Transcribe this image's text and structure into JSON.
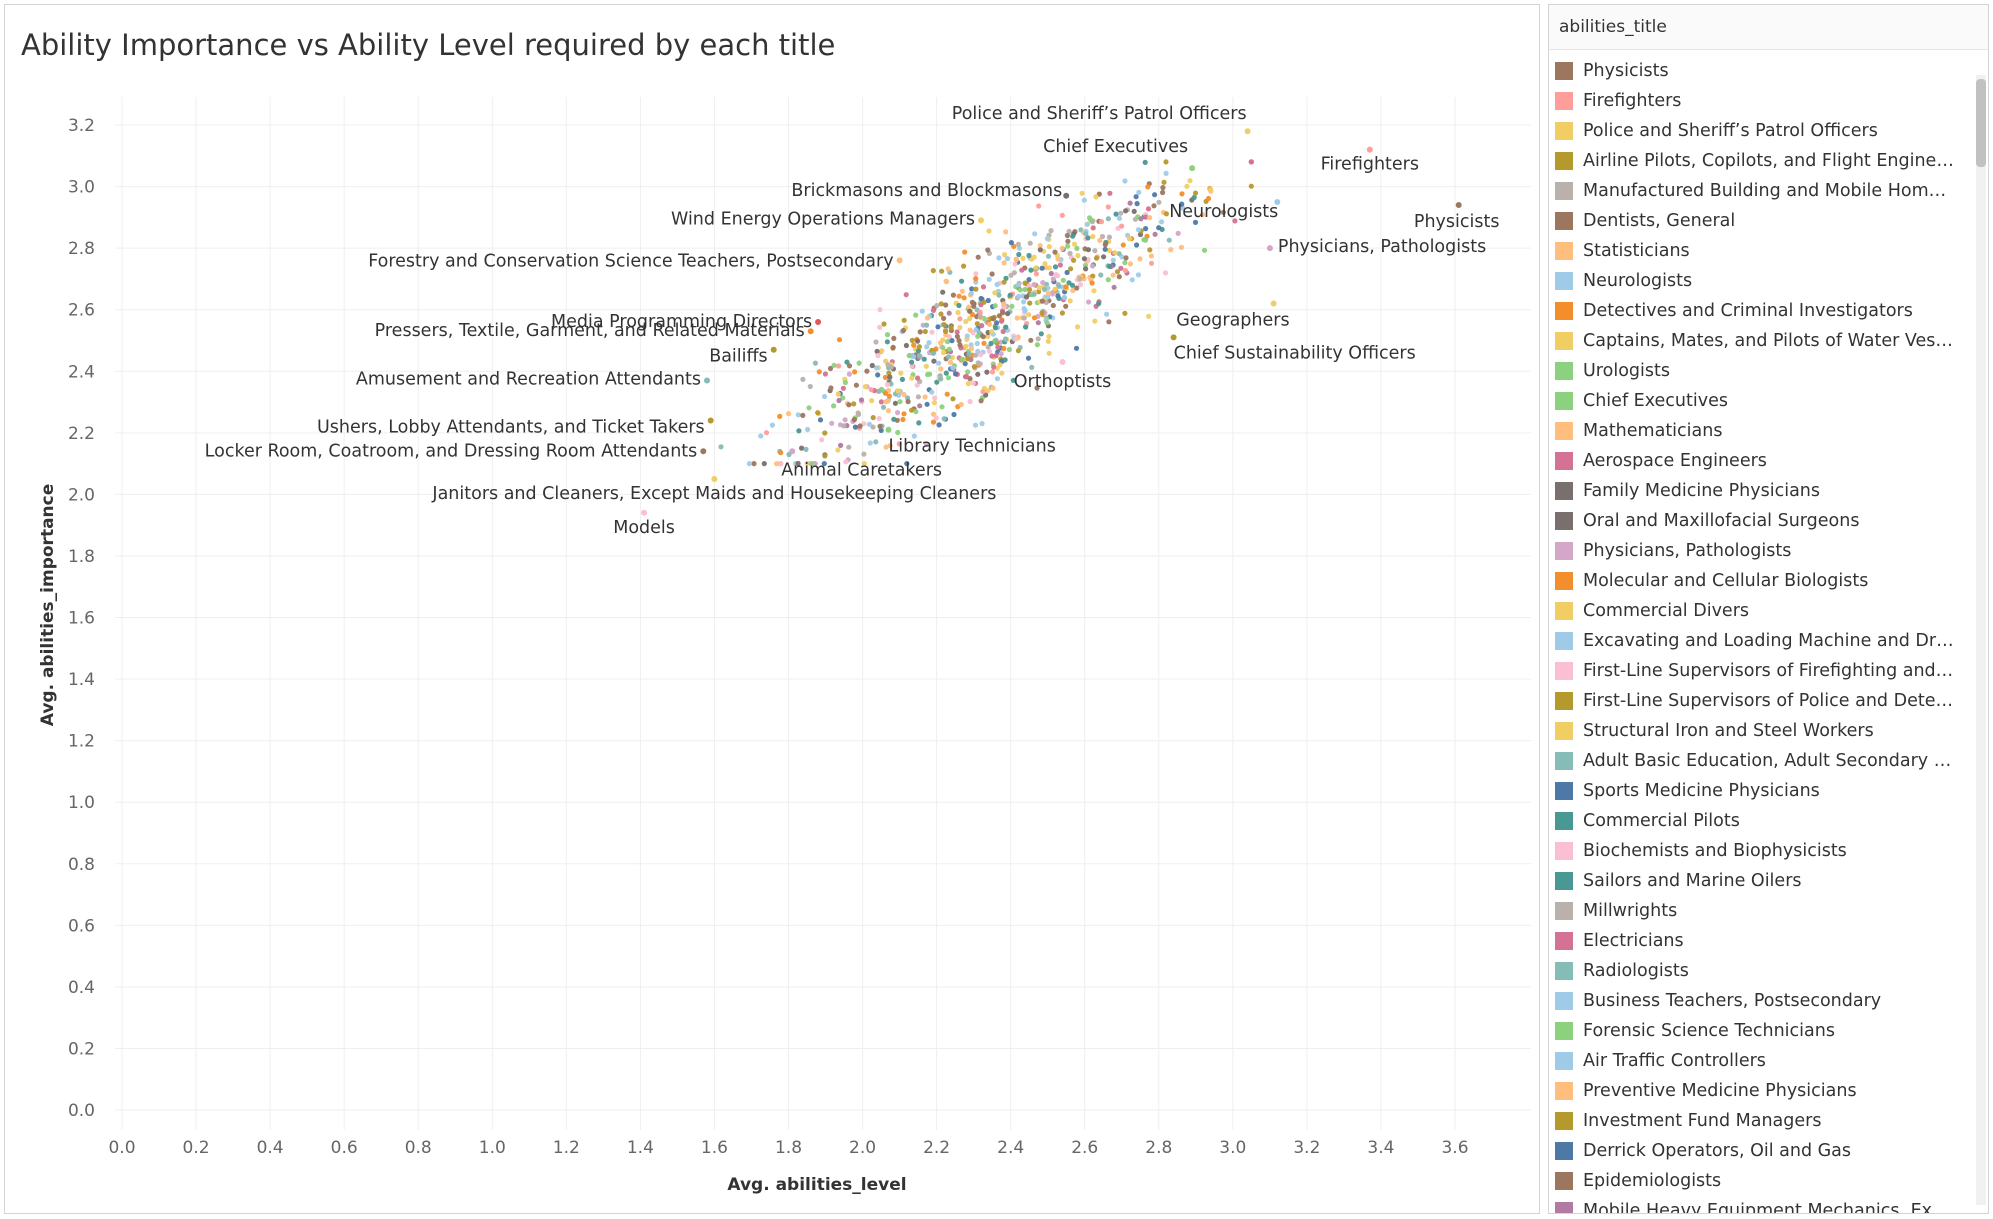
{
  "chart_data": {
    "type": "scatter",
    "title": "Ability Importance vs Ability Level required by each title",
    "xlabel": "Avg. abilities_level",
    "ylabel": "Avg. abilities_importance",
    "xlim": [
      0,
      3.8
    ],
    "ylim": [
      -0.05,
      3.3
    ],
    "xticks": [
      "0.0",
      "0.2",
      "0.4",
      "0.6",
      "0.8",
      "1.0",
      "1.2",
      "1.4",
      "1.6",
      "1.8",
      "2.0",
      "2.2",
      "2.4",
      "2.6",
      "2.8",
      "3.0",
      "3.2",
      "3.4",
      "3.6"
    ],
    "yticks": [
      "0.0",
      "0.2",
      "0.4",
      "0.6",
      "0.8",
      "1.0",
      "1.2",
      "1.4",
      "1.6",
      "1.8",
      "2.0",
      "2.2",
      "2.4",
      "2.6",
      "2.8",
      "3.0",
      "3.2"
    ],
    "grid": true,
    "legend": "right",
    "labeled_points": [
      {
        "label": "Police and Sheriff’s Patrol Officers",
        "x": 3.04,
        "y": 3.18,
        "color": "#f1ce63"
      },
      {
        "label": "Chief Executives",
        "x": 2.89,
        "y": 3.06,
        "color": "#8cd17d"
      },
      {
        "label": "Firefighters",
        "x": 3.37,
        "y": 3.12,
        "color": "#ff9d9a"
      },
      {
        "label": "Brickmasons and Blockmasons",
        "x": 2.55,
        "y": 2.97,
        "color": "#79706e"
      },
      {
        "label": "Wind Energy Operations Managers",
        "x": 2.32,
        "y": 2.89,
        "color": "#f1ce63"
      },
      {
        "label": "Neurologists",
        "x": 3.12,
        "y": 2.95,
        "color": "#a0cbe8"
      },
      {
        "label": "Physicists",
        "x": 3.61,
        "y": 2.94,
        "color": "#9d7660"
      },
      {
        "label": "Physicians, Pathologists",
        "x": 3.1,
        "y": 2.8,
        "color": "#d4a6c8"
      },
      {
        "label": "Forestry and Conservation Science Teachers, Postsecondary",
        "x": 2.1,
        "y": 2.76,
        "color": "#ffbe7d"
      },
      {
        "label": "Media Programming Directors",
        "x": 1.88,
        "y": 2.56,
        "color": "#e15759"
      },
      {
        "label": "Pressers, Textile, Garment, and Related Materials",
        "x": 1.86,
        "y": 2.53,
        "color": "#f28e2b"
      },
      {
        "label": "Geographers",
        "x": 3.11,
        "y": 2.62,
        "color": "#f1ce63"
      },
      {
        "label": "Chief Sustainability Officers",
        "x": 2.84,
        "y": 2.51,
        "color": "#b6992d"
      },
      {
        "label": "Bailiffs",
        "x": 1.76,
        "y": 2.47,
        "color": "#b6992d"
      },
      {
        "label": "Amusement and Recreation Attendants",
        "x": 1.58,
        "y": 2.37,
        "color": "#86bcb6"
      },
      {
        "label": "Orthoptists",
        "x": 2.54,
        "y": 2.43,
        "color": "#fabfd2"
      },
      {
        "label": "Ushers, Lobby Attendants, and Ticket Takers",
        "x": 1.59,
        "y": 2.24,
        "color": "#b6992d"
      },
      {
        "label": "Library Technicians",
        "x": 2.07,
        "y": 2.21,
        "color": "#8cd17d"
      },
      {
        "label": "Locker Room, Coatroom, and Dressing Room Attendants",
        "x": 1.57,
        "y": 2.14,
        "color": "#9d7660"
      },
      {
        "label": "Animal Caretakers",
        "x": 1.81,
        "y": 2.14,
        "color": "#d4a6c8"
      },
      {
        "label": "Janitors and Cleaners, Except Maids and Housekeeping Cleaners",
        "x": 1.6,
        "y": 2.05,
        "color": "#f1ce63"
      },
      {
        "label": "Models",
        "x": 1.41,
        "y": 1.94,
        "color": "#fabfd2"
      }
    ],
    "series": [
      {
        "name": "Physicists",
        "color": "#9d7660"
      },
      {
        "name": "Firefighters",
        "color": "#ff9d9a"
      },
      {
        "name": "Police and Sheriff’s Patrol Officers",
        "color": "#f1ce63"
      },
      {
        "name": "Airline Pilots, Copilots, and Flight Engineers",
        "color": "#b6992d"
      },
      {
        "name": "Manufactured Building and Mobile Home I..",
        "color": "#bab0ac"
      },
      {
        "name": "Dentists, General",
        "color": "#9d7660"
      },
      {
        "name": "Statisticians",
        "color": "#ffbe7d"
      },
      {
        "name": "Neurologists",
        "color": "#a0cbe8"
      },
      {
        "name": "Detectives and Criminal Investigators",
        "color": "#f28e2b"
      },
      {
        "name": "Captains, Mates, and Pilots of Water Vess..",
        "color": "#f1ce63"
      },
      {
        "name": "Urologists",
        "color": "#8cd17d"
      },
      {
        "name": "Chief Executives",
        "color": "#8cd17d"
      },
      {
        "name": "Mathematicians",
        "color": "#ffbe7d"
      },
      {
        "name": "Aerospace Engineers",
        "color": "#d37295"
      },
      {
        "name": "Family Medicine Physicians",
        "color": "#79706e"
      },
      {
        "name": "Oral and Maxillofacial Surgeons",
        "color": "#79706e"
      },
      {
        "name": "Physicians, Pathologists",
        "color": "#d4a6c8"
      },
      {
        "name": "Molecular and Cellular Biologists",
        "color": "#f28e2b"
      },
      {
        "name": "Commercial Divers",
        "color": "#f1ce63"
      },
      {
        "name": "Excavating and Loading Machine and Dragl..",
        "color": "#a0cbe8"
      },
      {
        "name": "First-Line Supervisors of Firefighting and P..",
        "color": "#fabfd2"
      },
      {
        "name": "First-Line Supervisors of Police and Detect..",
        "color": "#b6992d"
      },
      {
        "name": "Structural Iron and Steel Workers",
        "color": "#f1ce63"
      },
      {
        "name": "Adult Basic Education, Adult Secondary Ed..",
        "color": "#86bcb6"
      },
      {
        "name": "Sports Medicine Physicians",
        "color": "#4e79a7"
      },
      {
        "name": "Commercial Pilots",
        "color": "#499894"
      },
      {
        "name": "Biochemists and Biophysicists",
        "color": "#fabfd2"
      },
      {
        "name": "Sailors and Marine Oilers",
        "color": "#499894"
      },
      {
        "name": "Millwrights",
        "color": "#bab0ac"
      },
      {
        "name": "Electricians",
        "color": "#d37295"
      },
      {
        "name": "Radiologists",
        "color": "#86bcb6"
      },
      {
        "name": "Business Teachers, Postsecondary",
        "color": "#a0cbe8"
      },
      {
        "name": "Forensic Science Technicians",
        "color": "#8cd17d"
      },
      {
        "name": "Air Traffic Controllers",
        "color": "#a0cbe8"
      },
      {
        "name": "Preventive Medicine Physicians",
        "color": "#ffbe7d"
      },
      {
        "name": "Investment Fund Managers",
        "color": "#b6992d"
      },
      {
        "name": "Derrick Operators, Oil and Gas",
        "color": "#4e79a7"
      },
      {
        "name": "Epidemiologists",
        "color": "#9d7660"
      },
      {
        "name": "Mobile Heavy Equipment Mechanics, Exce..",
        "color": "#b07aa1"
      }
    ]
  },
  "legend": {
    "title": "abilities_title"
  }
}
